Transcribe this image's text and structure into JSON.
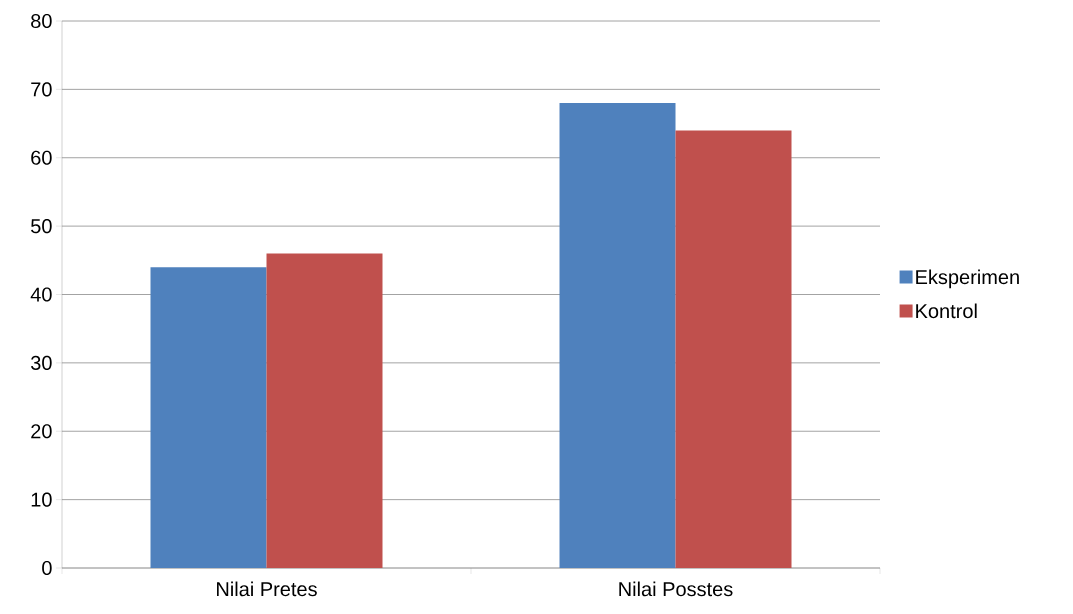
{
  "chart_data": {
    "type": "bar",
    "categories": [
      "Nilai Pretes",
      "Nilai Posstes"
    ],
    "series": [
      {
        "name": "Eksperimen",
        "color": "#4f81bd",
        "values": [
          44,
          68
        ]
      },
      {
        "name": "Kontrol",
        "color": "#c0504d",
        "values": [
          46,
          64
        ]
      }
    ],
    "ylim": [
      0,
      80
    ],
    "yticks": [
      0,
      10,
      20,
      30,
      40,
      50,
      60,
      70,
      80
    ],
    "grid": "y",
    "legend": "right"
  }
}
